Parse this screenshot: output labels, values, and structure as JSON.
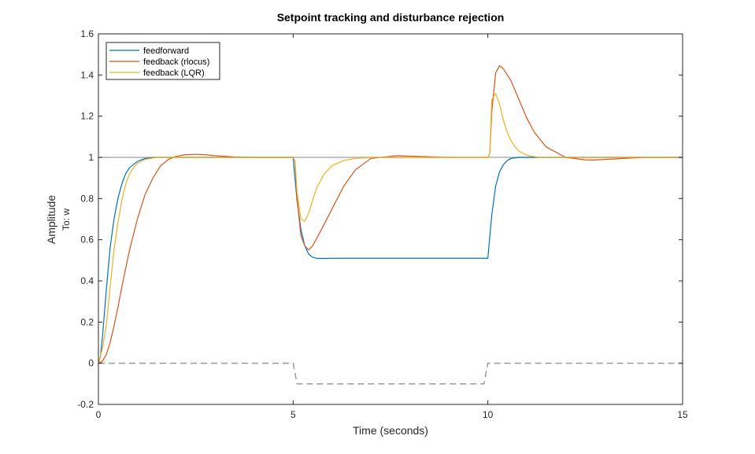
{
  "chart_data": {
    "type": "line",
    "title": "Setpoint tracking and disturbance rejection",
    "xlabel": "Time (seconds)",
    "ylabel": "Amplitude",
    "ylabel2": "To: w",
    "xlim": [
      0,
      15
    ],
    "ylim": [
      -0.2,
      1.6
    ],
    "xticks": [
      0,
      5,
      10,
      15
    ],
    "yticks": [
      -0.2,
      0,
      0.2,
      0.4,
      0.6,
      0.8,
      1,
      1.2,
      1.4,
      1.6
    ],
    "xtick_labels": [
      "0",
      "5",
      "10",
      "15"
    ],
    "ytick_labels": [
      "-0.2",
      "0",
      "0.2",
      "0.4",
      "0.6",
      "0.8",
      "1",
      "1.2",
      "1.4",
      "1.6"
    ],
    "grid": false,
    "legend_position": "top-left",
    "colors": {
      "feedforward": "#0072BD",
      "feedback_rlocus": "#D95319",
      "feedback_lqr": "#EDB120",
      "reference": "#b0b0b0",
      "disturbance": "#999999"
    },
    "series": [
      {
        "name": "feedforward",
        "color": "#0072BD",
        "x": [
          0,
          0.05,
          0.1,
          0.2,
          0.3,
          0.4,
          0.5,
          0.6,
          0.7,
          0.8,
          1.0,
          1.2,
          1.5,
          2.0,
          2.5,
          3,
          4,
          5,
          5.1,
          5.2,
          5.3,
          5.4,
          5.5,
          5.6,
          5.8,
          6.0,
          7,
          8,
          9,
          10,
          10.1,
          10.2,
          10.3,
          10.4,
          10.5,
          10.6,
          10.8,
          11.0,
          12,
          13,
          14,
          15
        ],
        "y": [
          0,
          0.03,
          0.12,
          0.35,
          0.56,
          0.7,
          0.8,
          0.87,
          0.92,
          0.95,
          0.98,
          0.995,
          1.0,
          1.0,
          1.0,
          1.0,
          1.0,
          1.0,
          0.79,
          0.65,
          0.57,
          0.53,
          0.515,
          0.51,
          0.509,
          0.51,
          0.51,
          0.51,
          0.51,
          0.51,
          0.72,
          0.86,
          0.93,
          0.965,
          0.985,
          0.995,
          1.0,
          1.0,
          1.0,
          1.0,
          1.0,
          1.0
        ]
      },
      {
        "name": "feedback (rlocus)",
        "color": "#D95319",
        "x": [
          0,
          0.1,
          0.2,
          0.3,
          0.4,
          0.5,
          0.6,
          0.7,
          0.8,
          1.0,
          1.2,
          1.4,
          1.6,
          1.8,
          2.0,
          2.2,
          2.5,
          2.8,
          3.0,
          3.5,
          4.0,
          5.0,
          5.05,
          5.1,
          5.2,
          5.3,
          5.4,
          5.5,
          5.7,
          6.0,
          6.3,
          6.6,
          7.0,
          7.5,
          7.7,
          8.0,
          9.0,
          10.0,
          10.05,
          10.1,
          10.2,
          10.3,
          10.4,
          10.6,
          10.8,
          11.0,
          11.2,
          11.5,
          12.0,
          12.5,
          12.7,
          13.0,
          14.0,
          15.0
        ],
        "y": [
          0,
          0.01,
          0.04,
          0.1,
          0.18,
          0.27,
          0.37,
          0.46,
          0.55,
          0.7,
          0.82,
          0.9,
          0.96,
          0.99,
          1.005,
          1.012,
          1.015,
          1.012,
          1.008,
          1.002,
          1.0,
          1.0,
          0.98,
          0.8,
          0.62,
          0.57,
          0.55,
          0.57,
          0.64,
          0.75,
          0.86,
          0.94,
          0.995,
          1.005,
          1.008,
          1.006,
          1.0,
          1.0,
          1.02,
          1.22,
          1.41,
          1.445,
          1.43,
          1.37,
          1.28,
          1.19,
          1.12,
          1.05,
          1.0,
          0.988,
          0.987,
          0.99,
          1.0,
          1.0
        ]
      },
      {
        "name": "feedback (LQR)",
        "color": "#EDB120",
        "x": [
          0,
          0.1,
          0.2,
          0.3,
          0.4,
          0.5,
          0.6,
          0.7,
          0.8,
          0.9,
          1.0,
          1.2,
          1.5,
          2.0,
          3.0,
          4.0,
          5.0,
          5.05,
          5.1,
          5.2,
          5.3,
          5.4,
          5.5,
          5.6,
          5.8,
          6.0,
          6.3,
          6.6,
          7.0,
          8.0,
          9.0,
          10.0,
          10.05,
          10.1,
          10.2,
          10.3,
          10.4,
          10.5,
          10.6,
          10.7,
          10.8,
          11.0,
          11.3,
          12.0,
          13.0,
          15.0
        ],
        "y": [
          0,
          0.07,
          0.18,
          0.37,
          0.55,
          0.68,
          0.79,
          0.87,
          0.92,
          0.95,
          0.97,
          0.99,
          1.0,
          1.0,
          1.0,
          1.0,
          1.0,
          0.98,
          0.83,
          0.7,
          0.69,
          0.73,
          0.79,
          0.85,
          0.92,
          0.96,
          0.985,
          0.995,
          1.0,
          1.0,
          1.0,
          1.0,
          1.02,
          1.28,
          1.31,
          1.26,
          1.18,
          1.12,
          1.08,
          1.05,
          1.03,
          1.01,
          1.0,
          1.0,
          1.0,
          1.0
        ]
      },
      {
        "role": "reference",
        "color": "#b0b0b0",
        "dashed": false,
        "x": [
          0,
          15
        ],
        "y": [
          1,
          1
        ]
      },
      {
        "role": "disturbance",
        "color": "#999999",
        "dashed": true,
        "x": [
          0,
          5.0,
          5.1,
          9.9,
          10.0,
          15
        ],
        "y": [
          0,
          0,
          -0.1,
          -0.1,
          0,
          0
        ]
      }
    ]
  }
}
